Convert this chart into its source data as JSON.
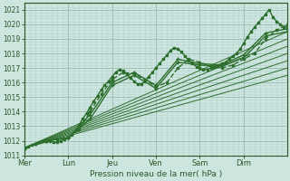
{
  "title": "",
  "xlabel": "Pression niveau de la mer( hPa )",
  "ylabel": "",
  "background_color": "#cce5df",
  "plot_bg_color": "#cce5df",
  "grid_major_color": "#a0bfb8",
  "grid_minor_color": "#b8d4ce",
  "line_color": "#2d6e2d",
  "ylim": [
    1011,
    1021.5
  ],
  "xlim": [
    0,
    6
  ],
  "yticks": [
    1011,
    1012,
    1013,
    1014,
    1015,
    1016,
    1017,
    1018,
    1019,
    1020,
    1021
  ],
  "xtick_labels": [
    "Mer",
    "Lun",
    "Jeu",
    "Ven",
    "Sam",
    "Dim"
  ],
  "xtick_positions": [
    0,
    1,
    2,
    3,
    4,
    5
  ],
  "lines": [
    {
      "x": [
        0.0,
        0.08,
        0.17,
        0.25,
        0.33,
        0.42,
        0.5,
        0.58,
        0.67,
        0.75,
        0.83,
        0.92,
        1.0,
        1.08,
        1.17,
        1.25,
        1.33,
        1.42,
        1.5,
        1.58,
        1.67,
        1.75,
        1.83,
        1.92,
        2.0,
        2.08,
        2.17,
        2.25,
        2.33,
        2.42,
        2.5,
        2.58,
        2.67,
        2.75,
        2.83,
        2.92,
        3.0,
        3.08,
        3.17,
        3.25,
        3.33,
        3.42,
        3.5,
        3.58,
        3.67,
        3.75,
        3.83,
        3.92,
        4.0,
        4.08,
        4.17,
        4.25,
        4.33,
        4.42,
        4.5,
        4.58,
        4.67,
        4.75,
        4.83,
        4.92,
        5.0,
        5.08,
        5.17,
        5.25,
        5.33,
        5.42,
        5.5,
        5.58,
        5.67,
        5.75,
        5.83,
        5.92,
        6.0
      ],
      "y": [
        1011.5,
        1011.6,
        1011.7,
        1011.8,
        1011.9,
        1012.0,
        1012.1,
        1012.0,
        1011.9,
        1011.9,
        1012.0,
        1012.1,
        1012.2,
        1012.4,
        1012.7,
        1013.1,
        1013.5,
        1013.9,
        1014.3,
        1014.7,
        1015.1,
        1015.5,
        1015.8,
        1016.1,
        1016.4,
        1016.7,
        1016.9,
        1016.8,
        1016.6,
        1016.3,
        1016.1,
        1015.9,
        1015.9,
        1016.1,
        1016.4,
        1016.7,
        1017.0,
        1017.3,
        1017.6,
        1017.9,
        1018.2,
        1018.4,
        1018.3,
        1018.1,
        1017.8,
        1017.5,
        1017.3,
        1017.1,
        1017.0,
        1016.9,
        1016.9,
        1017.0,
        1017.1,
        1017.2,
        1017.3,
        1017.4,
        1017.6,
        1017.8,
        1018.0,
        1018.3,
        1018.7,
        1019.1,
        1019.5,
        1019.8,
        1020.1,
        1020.4,
        1020.7,
        1021.0,
        1020.5,
        1020.2,
        1020.0,
        1019.8,
        1019.9
      ],
      "lw": 1.0,
      "marker": "s",
      "ms": 1.8,
      "ls": "-"
    },
    {
      "x": [
        0.0,
        0.25,
        0.5,
        0.75,
        1.0,
        1.25,
        1.5,
        1.75,
        2.0,
        2.25,
        2.5,
        2.75,
        3.0,
        3.25,
        3.5,
        3.75,
        4.0,
        4.25,
        4.5,
        4.75,
        5.0,
        5.25,
        5.5,
        5.75,
        6.0
      ],
      "y": [
        1011.5,
        1011.8,
        1012.0,
        1012.1,
        1012.2,
        1012.8,
        1014.0,
        1015.2,
        1016.2,
        1016.7,
        1016.6,
        1016.2,
        1015.7,
        1016.0,
        1017.0,
        1017.6,
        1017.4,
        1017.1,
        1017.0,
        1017.2,
        1017.6,
        1018.0,
        1019.0,
        1019.6,
        1020.0
      ],
      "lw": 1.0,
      "marker": "s",
      "ms": 1.8,
      "ls": "--"
    },
    {
      "x": [
        0.0,
        6.0
      ],
      "y": [
        1011.5,
        1016.5
      ],
      "lw": 0.7,
      "marker": null,
      "ms": 0,
      "ls": "-"
    },
    {
      "x": [
        0.0,
        6.0
      ],
      "y": [
        1011.5,
        1017.0
      ],
      "lw": 0.7,
      "marker": null,
      "ms": 0,
      "ls": "-"
    },
    {
      "x": [
        0.0,
        6.0
      ],
      "y": [
        1011.5,
        1017.5
      ],
      "lw": 0.7,
      "marker": null,
      "ms": 0,
      "ls": "-"
    },
    {
      "x": [
        0.0,
        6.0
      ],
      "y": [
        1011.5,
        1018.0
      ],
      "lw": 0.7,
      "marker": null,
      "ms": 0,
      "ls": "-"
    },
    {
      "x": [
        0.0,
        6.0
      ],
      "y": [
        1011.5,
        1018.5
      ],
      "lw": 0.7,
      "marker": null,
      "ms": 0,
      "ls": "-"
    },
    {
      "x": [
        0.0,
        6.0
      ],
      "y": [
        1011.5,
        1019.0
      ],
      "lw": 0.7,
      "marker": null,
      "ms": 0,
      "ls": "-"
    },
    {
      "x": [
        0.0,
        6.0
      ],
      "y": [
        1011.5,
        1019.5
      ],
      "lw": 0.7,
      "marker": null,
      "ms": 0,
      "ls": "-"
    },
    {
      "x": [
        0.0,
        0.5,
        1.0,
        1.5,
        2.0,
        2.5,
        3.0,
        3.5,
        4.0,
        4.5,
        5.0,
        5.5,
        6.0
      ],
      "y": [
        1011.5,
        1012.0,
        1012.2,
        1013.5,
        1015.8,
        1016.5,
        1015.6,
        1017.4,
        1017.2,
        1017.1,
        1017.7,
        1019.2,
        1019.5
      ],
      "lw": 1.0,
      "marker": "+",
      "ms": 3,
      "ls": "-"
    },
    {
      "x": [
        0.0,
        0.5,
        1.0,
        1.5,
        2.0,
        2.5,
        3.0,
        3.5,
        4.0,
        4.5,
        5.0,
        5.5,
        6.0
      ],
      "y": [
        1011.5,
        1012.0,
        1012.2,
        1013.8,
        1016.0,
        1016.7,
        1015.8,
        1017.6,
        1017.3,
        1017.2,
        1017.9,
        1019.4,
        1019.7
      ],
      "lw": 1.0,
      "marker": "+",
      "ms": 3,
      "ls": "-"
    }
  ]
}
